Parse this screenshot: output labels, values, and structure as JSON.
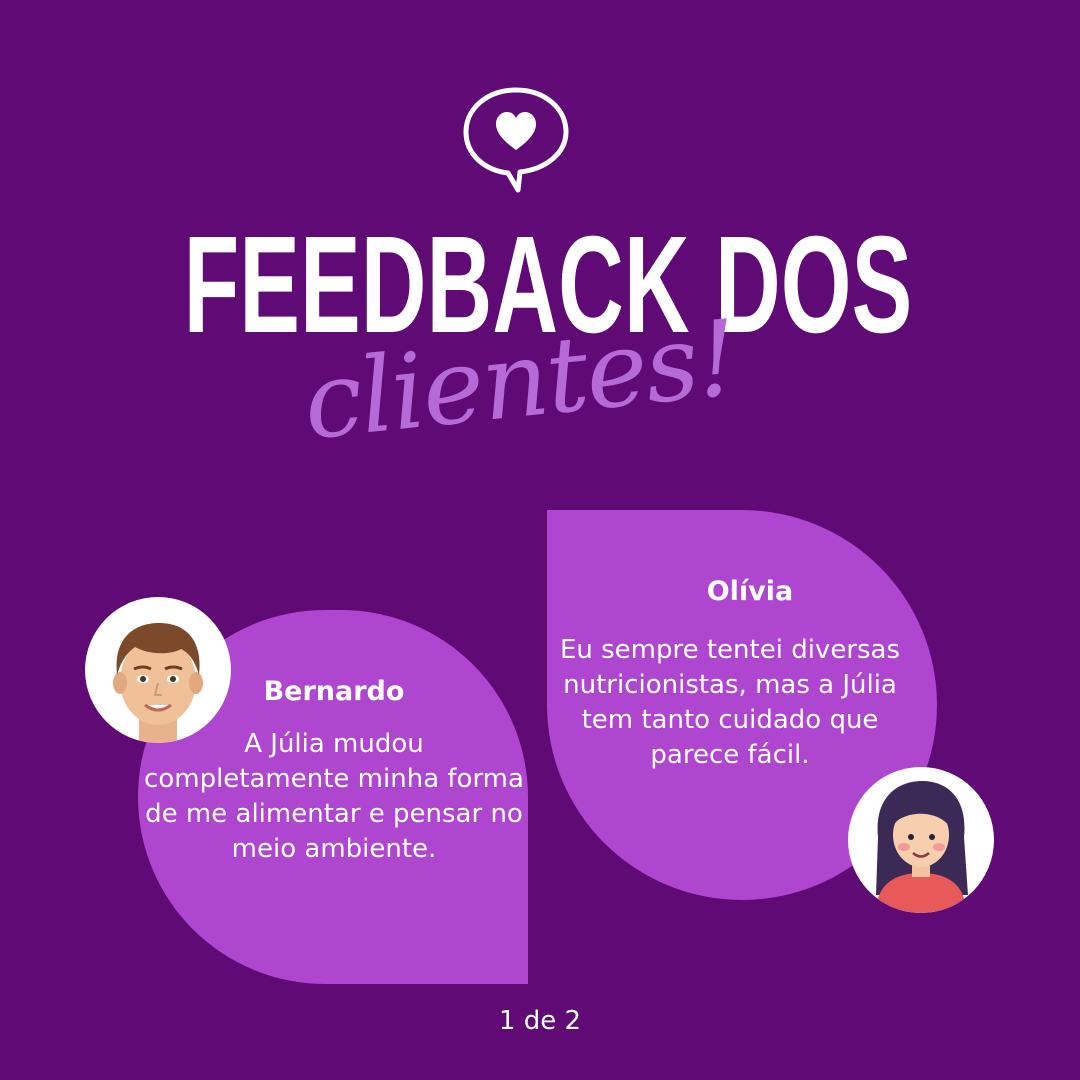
{
  "header": {
    "icon": "heart-speech-bubble-icon",
    "title": "FEEDBACK DOS",
    "script_word": "clientes!"
  },
  "testimonials": [
    {
      "name": "Bernardo",
      "quote": "A Júlia mudou completamente minha forma de me alimentar e pensar no meio ambiente.",
      "avatar": "male-avatar"
    },
    {
      "name": "Olívia",
      "quote": "Eu sempre tentei diversas nutricionistas, mas a Júlia tem tanto cuidado que parece fácil.",
      "avatar": "female-avatar"
    }
  ],
  "pager": "1 de 2",
  "colors": {
    "background": "#5f0a75",
    "bubble": "#ae46cf",
    "script": "#b66ad8",
    "text": "#ffffff"
  }
}
